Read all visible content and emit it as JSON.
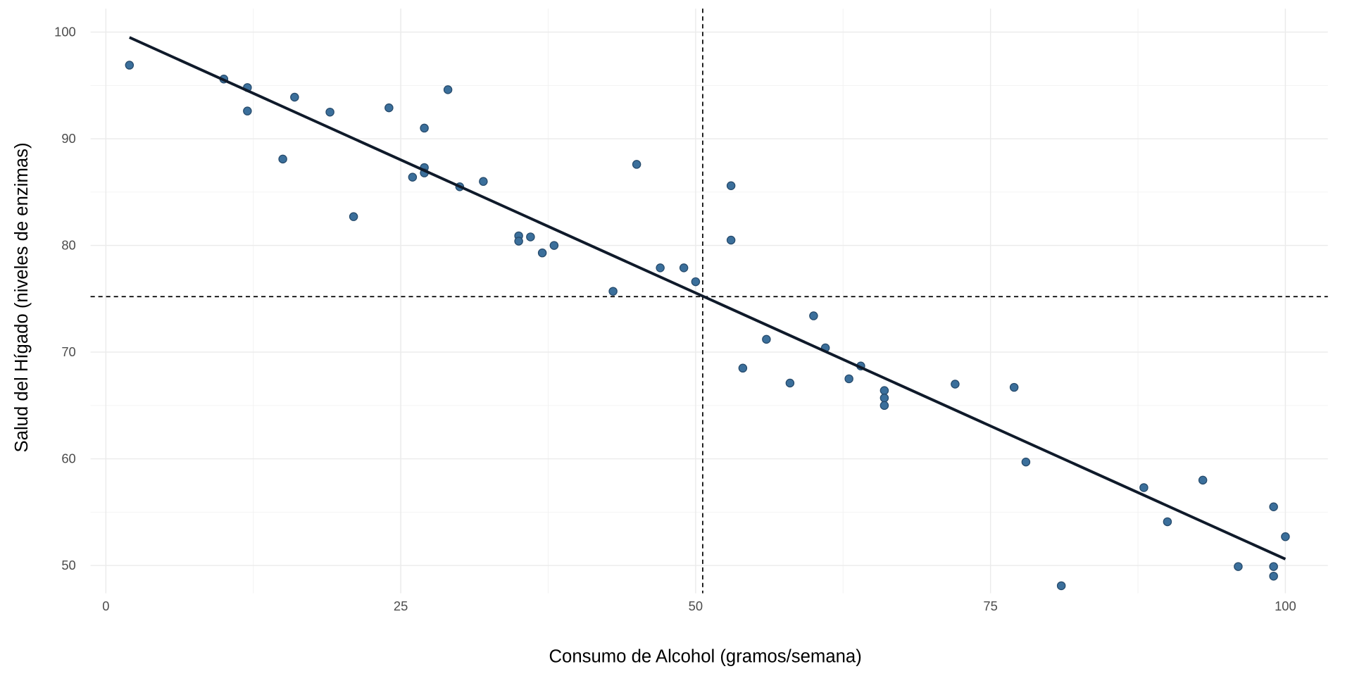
{
  "chart_data": {
    "type": "scatter",
    "title": "",
    "xlabel": "Consumo de Alcohol (gramos/semana)",
    "ylabel": "Salud del Hígado (niveles de enzimas)",
    "xlim": [
      -1.3,
      103.6
    ],
    "ylim": [
      47.4,
      102.2
    ],
    "xticks": [
      0,
      25,
      50,
      75,
      100
    ],
    "yticks": [
      50,
      60,
      70,
      80,
      90,
      100
    ],
    "grid": true,
    "point_color": "#3b6f9b",
    "line_color": "#0f1a2a",
    "points": [
      [
        2,
        96.9
      ],
      [
        10,
        95.6
      ],
      [
        12,
        94.8
      ],
      [
        12,
        92.6
      ],
      [
        15,
        88.1
      ],
      [
        16,
        93.9
      ],
      [
        19,
        92.5
      ],
      [
        21,
        82.7
      ],
      [
        24,
        92.9
      ],
      [
        26,
        86.4
      ],
      [
        27,
        91.0
      ],
      [
        27,
        87.3
      ],
      [
        27,
        86.8
      ],
      [
        29,
        94.6
      ],
      [
        30,
        85.5
      ],
      [
        32,
        86.0
      ],
      [
        35,
        80.9
      ],
      [
        35,
        80.4
      ],
      [
        36,
        80.8
      ],
      [
        37,
        79.3
      ],
      [
        38,
        80.0
      ],
      [
        43,
        75.7
      ],
      [
        45,
        87.6
      ],
      [
        47,
        77.9
      ],
      [
        49,
        77.9
      ],
      [
        50,
        76.6
      ],
      [
        53,
        85.6
      ],
      [
        53,
        80.5
      ],
      [
        54,
        68.5
      ],
      [
        56,
        71.2
      ],
      [
        58,
        67.1
      ],
      [
        60,
        73.4
      ],
      [
        61,
        70.4
      ],
      [
        63,
        67.5
      ],
      [
        64,
        68.7
      ],
      [
        66,
        66.4
      ],
      [
        66,
        65.7
      ],
      [
        66,
        65.0
      ],
      [
        72,
        67.0
      ],
      [
        77,
        66.7
      ],
      [
        78,
        59.7
      ],
      [
        81,
        48.1
      ],
      [
        88,
        57.3
      ],
      [
        90,
        54.1
      ],
      [
        93,
        58.0
      ],
      [
        96,
        49.9
      ],
      [
        99,
        55.5
      ],
      [
        99,
        49.9
      ],
      [
        99,
        49.0
      ],
      [
        100,
        52.7
      ]
    ],
    "regression_line": {
      "x": [
        2,
        100
      ],
      "y": [
        99.5,
        50.6
      ]
    },
    "mean_x": 50.6,
    "mean_y": 75.2
  }
}
